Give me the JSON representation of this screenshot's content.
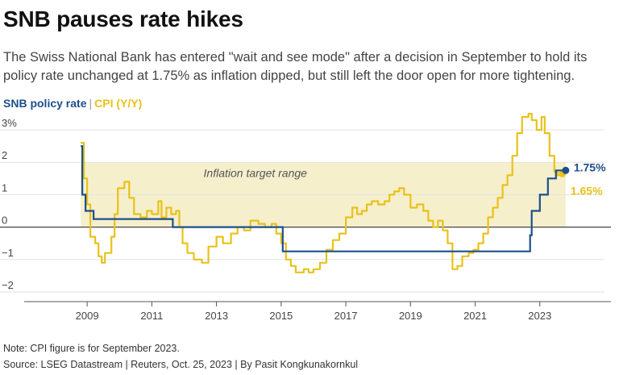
{
  "header": {
    "title": "SNB pauses rate hikes",
    "subtitle": "The Swiss National Bank has entered \"wait and see mode\" after a decision in September to hold its policy rate unchanged at 1.75% as inflation dipped, but still left the door open for more tightening."
  },
  "legend": {
    "snb": "SNB policy rate",
    "separator": "|",
    "cpi": "CPI (Y/Y)"
  },
  "footer": {
    "note": "Note: CPI figure is for September 2023.",
    "source": "Source: LSEG Datastream | Reuters, Oct. 25, 2023 | By Pasit Kongkunakornkul"
  },
  "colors": {
    "snb": "#1d4f8c",
    "cpi": "#e8c21a",
    "band": "#f6efcc",
    "grid": "#e2e2e2",
    "zero": "#444444"
  },
  "chart_data": {
    "type": "line",
    "x_range": [
      2008.0,
      2025.0
    ],
    "y_range": [
      -2.3,
      3.4
    ],
    "x_ticks": [
      2009,
      2011,
      2013,
      2015,
      2017,
      2019,
      2021,
      2023
    ],
    "x_tick_labels": [
      "2009",
      "2011",
      "2013",
      "2015",
      "2017",
      "2019",
      "2021",
      "2023"
    ],
    "y_ticks": [
      3,
      2,
      1,
      0,
      -1,
      -2
    ],
    "y_tick_labels": [
      "3%",
      "2",
      "1",
      "0",
      "−1",
      "−2"
    ],
    "band": {
      "from": 0,
      "to": 2,
      "x_start": 2008.8,
      "x_end": 2023.8,
      "label": "Inflation target range"
    },
    "end_labels": {
      "snb": "1.75%",
      "cpi": "1.65%"
    },
    "series": [
      {
        "name": "SNB policy rate",
        "line": "step",
        "points": [
          [
            2008.8,
            2.5
          ],
          [
            2008.85,
            1.0
          ],
          [
            2008.95,
            0.5
          ],
          [
            2009.2,
            0.25
          ],
          [
            2011.6,
            0.25
          ],
          [
            2011.65,
            0.0
          ],
          [
            2015.0,
            0.0
          ],
          [
            2015.05,
            -0.75
          ],
          [
            2022.45,
            -0.75
          ],
          [
            2022.7,
            -0.25
          ],
          [
            2022.75,
            0.5
          ],
          [
            2022.95,
            0.5
          ],
          [
            2023.0,
            1.0
          ],
          [
            2023.2,
            1.0
          ],
          [
            2023.25,
            1.5
          ],
          [
            2023.45,
            1.5
          ],
          [
            2023.5,
            1.75
          ],
          [
            2023.8,
            1.75
          ]
        ]
      },
      {
        "name": "CPI (Y/Y)",
        "line": "step",
        "points": [
          [
            2008.8,
            2.6
          ],
          [
            2008.9,
            1.5
          ],
          [
            2009.0,
            0.7
          ],
          [
            2009.1,
            -0.3
          ],
          [
            2009.25,
            -0.5
          ],
          [
            2009.35,
            -0.9
          ],
          [
            2009.45,
            -1.1
          ],
          [
            2009.55,
            -0.8
          ],
          [
            2009.75,
            -0.3
          ],
          [
            2009.85,
            0.4
          ],
          [
            2009.95,
            1.2
          ],
          [
            2010.15,
            1.4
          ],
          [
            2010.3,
            0.9
          ],
          [
            2010.45,
            0.4
          ],
          [
            2010.65,
            0.3
          ],
          [
            2010.85,
            0.5
          ],
          [
            2011.0,
            0.4
          ],
          [
            2011.2,
            0.8
          ],
          [
            2011.3,
            0.3
          ],
          [
            2011.45,
            0.6
          ],
          [
            2011.6,
            0.4
          ],
          [
            2011.75,
            0.5
          ],
          [
            2011.85,
            0.0
          ],
          [
            2011.95,
            -0.5
          ],
          [
            2012.1,
            -0.8
          ],
          [
            2012.3,
            -1.0
          ],
          [
            2012.55,
            -1.1
          ],
          [
            2012.75,
            -0.6
          ],
          [
            2013.0,
            -0.3
          ],
          [
            2013.2,
            -0.5
          ],
          [
            2013.45,
            -0.2
          ],
          [
            2013.65,
            0.0
          ],
          [
            2013.85,
            -0.1
          ],
          [
            2014.05,
            0.2
          ],
          [
            2014.3,
            0.1
          ],
          [
            2014.5,
            0.0
          ],
          [
            2014.7,
            0.1
          ],
          [
            2014.85,
            -0.2
          ],
          [
            2015.0,
            -0.5
          ],
          [
            2015.15,
            -1.0
          ],
          [
            2015.3,
            -1.2
          ],
          [
            2015.45,
            -1.4
          ],
          [
            2015.7,
            -1.3
          ],
          [
            2015.85,
            -1.4
          ],
          [
            2016.0,
            -1.3
          ],
          [
            2016.2,
            -1.1
          ],
          [
            2016.4,
            -0.7
          ],
          [
            2016.6,
            -0.4
          ],
          [
            2016.8,
            -0.2
          ],
          [
            2017.0,
            0.3
          ],
          [
            2017.2,
            0.6
          ],
          [
            2017.35,
            0.4
          ],
          [
            2017.5,
            0.5
          ],
          [
            2017.65,
            0.7
          ],
          [
            2017.8,
            0.8
          ],
          [
            2018.0,
            0.7
          ],
          [
            2018.2,
            0.8
          ],
          [
            2018.35,
            1.0
          ],
          [
            2018.5,
            1.1
          ],
          [
            2018.65,
            1.2
          ],
          [
            2018.8,
            1.0
          ],
          [
            2019.0,
            0.6
          ],
          [
            2019.2,
            0.7
          ],
          [
            2019.4,
            0.5
          ],
          [
            2019.55,
            0.2
          ],
          [
            2019.7,
            0.0
          ],
          [
            2019.85,
            0.2
          ],
          [
            2020.0,
            -0.1
          ],
          [
            2020.15,
            -0.5
          ],
          [
            2020.3,
            -1.3
          ],
          [
            2020.45,
            -1.2
          ],
          [
            2020.6,
            -0.9
          ],
          [
            2020.8,
            -0.8
          ],
          [
            2020.95,
            -0.7
          ],
          [
            2021.1,
            -0.5
          ],
          [
            2021.25,
            -0.2
          ],
          [
            2021.4,
            0.3
          ],
          [
            2021.55,
            0.6
          ],
          [
            2021.7,
            0.9
          ],
          [
            2021.85,
            1.3
          ],
          [
            2022.0,
            1.6
          ],
          [
            2022.15,
            2.2
          ],
          [
            2022.3,
            2.9
          ],
          [
            2022.45,
            3.4
          ],
          [
            2022.65,
            3.5
          ],
          [
            2022.75,
            3.3
          ],
          [
            2022.9,
            3.0
          ],
          [
            2023.05,
            3.4
          ],
          [
            2023.15,
            2.9
          ],
          [
            2023.3,
            2.2
          ],
          [
            2023.45,
            1.7
          ],
          [
            2023.55,
            1.6
          ],
          [
            2023.7,
            1.65
          ]
        ]
      }
    ]
  }
}
